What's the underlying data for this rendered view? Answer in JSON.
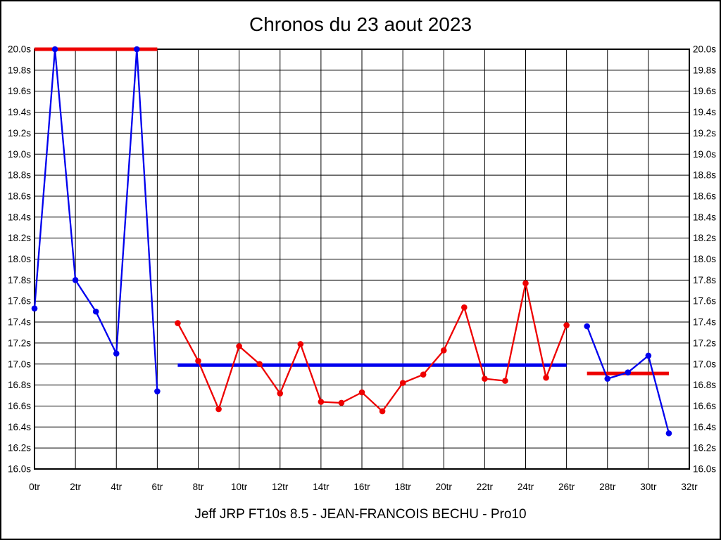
{
  "window": {
    "background_color": "#ffffff",
    "border_color": "#000000"
  },
  "chart_data": {
    "type": "line",
    "title": "Chronos du 23 aout 2023",
    "subtitle": "Jeff JRP FT10s 8.5 - JEAN-FRANCOIS BECHU - Pro10",
    "xlabel": "",
    "ylabel": "",
    "x_unit": "tr",
    "y_unit": "s",
    "xlim": [
      0,
      32
    ],
    "ylim": [
      16.0,
      20.0
    ],
    "x_tick_step": 2,
    "y_tick_step": 0.2,
    "grid": true,
    "legend": "none",
    "y_axis_sides": [
      "left",
      "right"
    ],
    "x_tick_labels": [
      "0tr",
      "2tr",
      "4tr",
      "6tr",
      "8tr",
      "10tr",
      "12tr",
      "14tr",
      "16tr",
      "18tr",
      "20tr",
      "22tr",
      "24tr",
      "26tr",
      "28tr",
      "30tr",
      "32tr"
    ],
    "y_tick_labels": [
      "16.0s",
      "16.2s",
      "16.4s",
      "16.6s",
      "16.8s",
      "17.0s",
      "17.2s",
      "17.4s",
      "17.6s",
      "17.8s",
      "18.0s",
      "18.2s",
      "18.4s",
      "18.6s",
      "18.8s",
      "19.0s",
      "19.2s",
      "19.4s",
      "19.6s",
      "19.8s",
      "20.0s"
    ],
    "series": [
      {
        "name": "run1-blue",
        "color": "#0000ee",
        "points": [
          [
            0,
            17.53
          ],
          [
            1,
            20.0
          ],
          [
            2,
            17.8
          ],
          [
            3,
            17.5
          ],
          [
            4,
            17.1
          ],
          [
            5,
            20.0
          ],
          [
            6,
            16.74
          ]
        ]
      },
      {
        "name": "run2-red",
        "color": "#ee0000",
        "points": [
          [
            7,
            17.39
          ],
          [
            8,
            17.03
          ],
          [
            9,
            16.57
          ],
          [
            10,
            17.17
          ],
          [
            11,
            17.0
          ],
          [
            12,
            16.72
          ],
          [
            13,
            17.19
          ],
          [
            14,
            16.64
          ],
          [
            15,
            16.63
          ],
          [
            16,
            16.73
          ],
          [
            17,
            16.55
          ],
          [
            18,
            16.82
          ],
          [
            19,
            16.9
          ],
          [
            20,
            17.13
          ],
          [
            21,
            17.54
          ],
          [
            22,
            16.86
          ],
          [
            23,
            16.84
          ],
          [
            24,
            17.77
          ],
          [
            25,
            16.87
          ],
          [
            26,
            17.37
          ]
        ]
      },
      {
        "name": "run3-blue",
        "color": "#0000ee",
        "points": [
          [
            27,
            17.36
          ],
          [
            28,
            16.86
          ],
          [
            29,
            16.92
          ],
          [
            30,
            17.08
          ],
          [
            31,
            16.34
          ]
        ]
      }
    ],
    "reference_lines": [
      {
        "name": "cap-line-run1",
        "color": "#ee0000",
        "y": 20.0,
        "x_start": 0,
        "x_end": 6
      },
      {
        "name": "average-line-run2",
        "color": "#0000ee",
        "y": 16.99,
        "x_start": 7,
        "x_end": 26
      },
      {
        "name": "average-line-run3",
        "color": "#ee0000",
        "y": 16.91,
        "x_start": 27,
        "x_end": 31
      }
    ]
  }
}
